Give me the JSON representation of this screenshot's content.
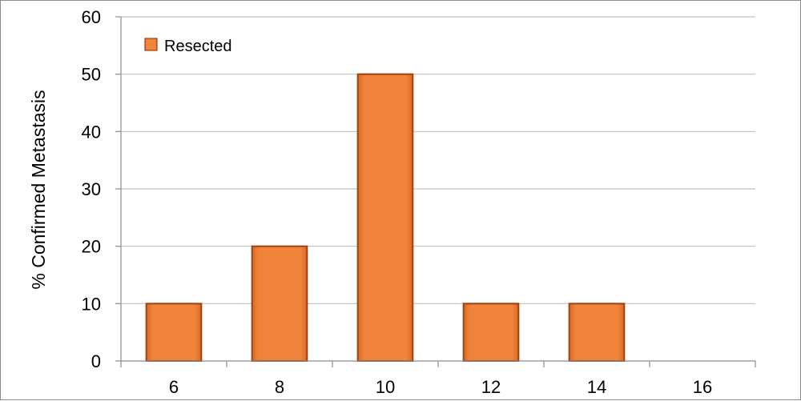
{
  "chart_data": {
    "type": "bar",
    "categories": [
      "6",
      "8",
      "10",
      "12",
      "14",
      "16"
    ],
    "series": [
      {
        "name": "Resected",
        "values": [
          10,
          20,
          50,
          10,
          10,
          0
        ]
      }
    ],
    "ylabel": "% Confirmed Metastasis",
    "xlabel": "",
    "ylim": [
      0,
      60
    ],
    "yticks": [
      0,
      10,
      20,
      30,
      40,
      50,
      60
    ],
    "grid": true,
    "legend": "top-left",
    "colors": {
      "bar_fill": "#f0843a",
      "bar_stroke": "#a0400e",
      "grid": "#c0c0c0",
      "axis": "#8c8c8c"
    }
  }
}
